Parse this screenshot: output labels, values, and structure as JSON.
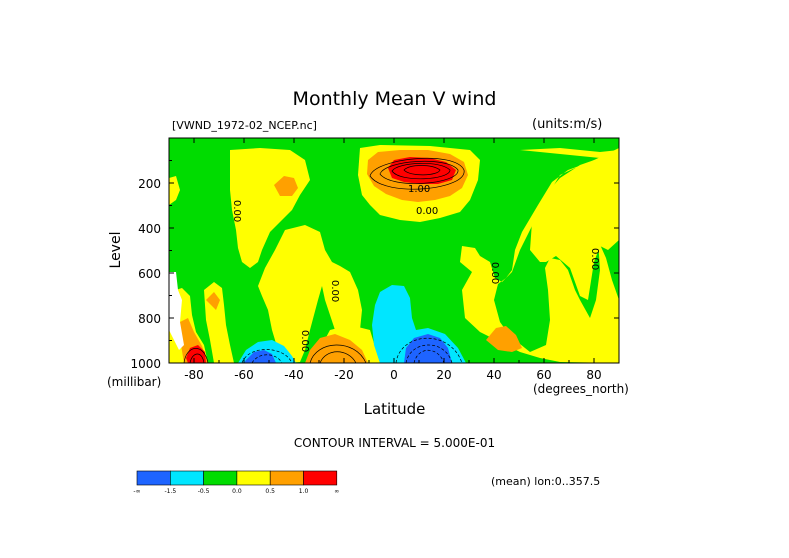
{
  "chart_data": {
    "type": "heatmap",
    "subtype": "filled-contour latitude-pressure cross-section",
    "title": "Monthly Mean V wind",
    "file_label": "[VWND_1972-02_NCEP.nc]",
    "units_label": "(units:m/s)",
    "xlabel": "Latitude",
    "x_units_label": "(degrees_north)",
    "ylabel": "Level",
    "y_units_label": "(millibar)",
    "xlim": [
      -90,
      90
    ],
    "ylim": [
      1000,
      0
    ],
    "xticks": [
      -80,
      -60,
      -40,
      -20,
      0,
      20,
      40,
      60,
      80
    ],
    "xtick_labels": [
      "-80",
      "-60",
      "-40",
      "-20",
      "0",
      "20",
      "40",
      "60",
      "80"
    ],
    "yticks": [
      1000,
      800,
      600,
      400,
      200
    ],
    "ytick_labels": [
      "1000",
      "800",
      "600",
      "400",
      "200"
    ],
    "contour_interval_text": "CONTOUR INTERVAL = 5.000E-01",
    "footnote": "(mean) lon:0..357.5",
    "contour_labels": [
      "1.00",
      "0.00",
      "0.00",
      "0.00",
      "0.00",
      "0.00",
      "0.00"
    ],
    "colorbar": {
      "colors": [
        "#1e64ff",
        "#00e6ff",
        "#00dc00",
        "#ffff00",
        "#ffa000",
        "#ff0000"
      ],
      "labels": [
        "-∞",
        "-1.5",
        "-0.5",
        "0.0",
        "0.5",
        "1.0",
        "∞"
      ]
    },
    "features": [
      {
        "sign": "positive",
        "lat": 5,
        "level": 160,
        "peak": 2.0
      },
      {
        "sign": "negative",
        "lat": 10,
        "level": 1000,
        "peak": -2.0
      },
      {
        "sign": "negative",
        "lat": -55,
        "level": 1000,
        "peak": -1.5
      },
      {
        "sign": "positive",
        "lat": -80,
        "level": 1000,
        "peak": 1.5
      },
      {
        "sign": "positive",
        "lat": -25,
        "level": 1000,
        "peak": 1.0
      }
    ]
  }
}
